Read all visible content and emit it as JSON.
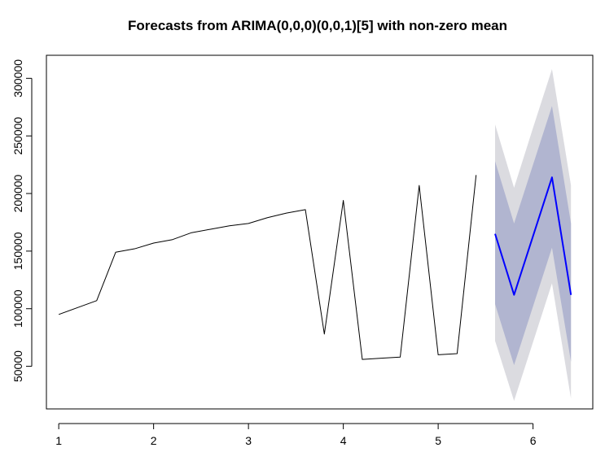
{
  "chart_data": {
    "type": "line",
    "title": "Forecasts from ARIMA(0,0,0)(0,0,1)[5] with non-zero mean",
    "xlabel": "",
    "ylabel": "",
    "xlim": [
      0.87,
      6.63
    ],
    "ylim": [
      13000,
      320000
    ],
    "x_ticks": [
      1,
      2,
      3,
      4,
      5,
      6
    ],
    "y_ticks": [
      50000,
      100000,
      150000,
      200000,
      250000,
      300000
    ],
    "grid": false,
    "legend": "none",
    "series": [
      {
        "role": "observed",
        "color": "#000000",
        "points": [
          [
            1.0,
            95000
          ],
          [
            1.2,
            101000
          ],
          [
            1.4,
            107000
          ],
          [
            1.6,
            149000
          ],
          [
            1.8,
            152000
          ],
          [
            2.0,
            157000
          ],
          [
            2.2,
            160000
          ],
          [
            2.4,
            166000
          ],
          [
            2.6,
            169000
          ],
          [
            2.8,
            172000
          ],
          [
            3.0,
            174000
          ],
          [
            3.2,
            179000
          ],
          [
            3.4,
            183000
          ],
          [
            3.6,
            186000
          ],
          [
            3.8,
            78000
          ],
          [
            4.0,
            194000
          ],
          [
            4.2,
            56000
          ],
          [
            4.4,
            57000
          ],
          [
            4.6,
            58000
          ],
          [
            4.8,
            207000
          ],
          [
            5.0,
            60000
          ],
          [
            5.2,
            61000
          ],
          [
            5.4,
            216000
          ]
        ]
      },
      {
        "role": "forecast",
        "color": "#0000ff",
        "points": [
          [
            5.6,
            165000
          ],
          [
            5.8,
            112000
          ],
          [
            6.0,
            163000
          ],
          [
            6.2,
            214000
          ],
          [
            6.4,
            112000
          ]
        ]
      }
    ],
    "intervals": [
      {
        "level": 95,
        "color": "#dbdbe0",
        "x": [
          5.6,
          5.8,
          6.0,
          6.2,
          6.4
        ],
        "lower": [
          72000,
          20000,
          71000,
          122000,
          22000
        ],
        "upper": [
          260000,
          205000,
          257000,
          308000,
          207000
        ]
      },
      {
        "level": 80,
        "color": "#b1b5d0",
        "x": [
          5.6,
          5.8,
          6.0,
          6.2,
          6.4
        ],
        "lower": [
          104000,
          51000,
          102000,
          153000,
          54000
        ],
        "upper": [
          228000,
          174000,
          225000,
          276000,
          174000
        ]
      }
    ]
  }
}
